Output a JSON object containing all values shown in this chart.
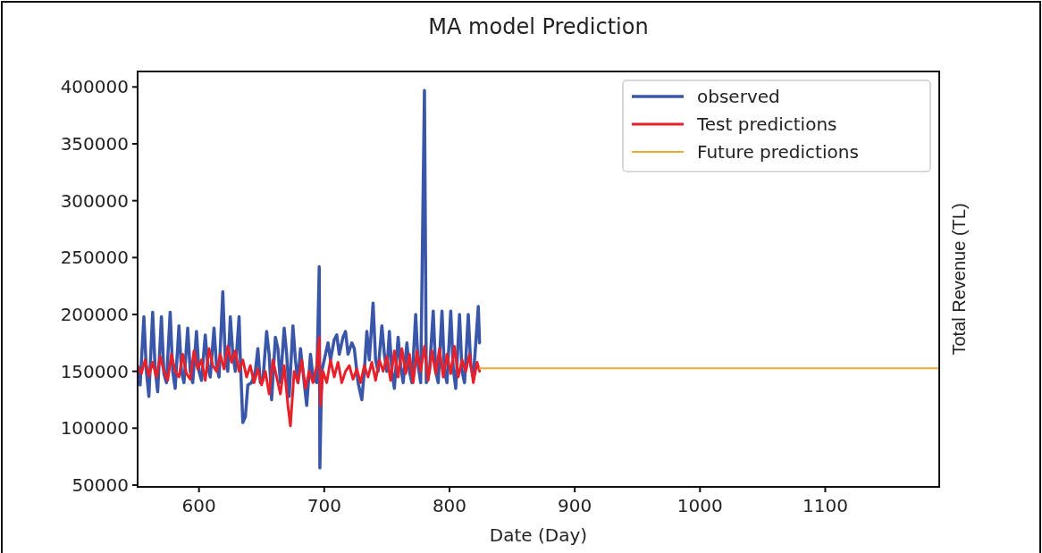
{
  "chart_data": {
    "type": "line",
    "title": "MA model Prediction",
    "xlabel": "Date (Day)",
    "y2label": "Total Revenue (TL)",
    "xlim": [
      551,
      1191
    ],
    "xticks": [
      600,
      700,
      800,
      900,
      1000,
      1100
    ],
    "ylim": [
      48400,
      413600
    ],
    "yticks": [
      50000,
      100000,
      150000,
      200000,
      250000,
      300000,
      350000,
      400000
    ],
    "grid": false,
    "legend": "top right",
    "line_style": "solid",
    "series": [
      {
        "name": "observed",
        "color": "#3a56a8",
        "x": [
          551,
          553,
          556,
          558,
          560,
          563,
          565,
          567,
          570,
          572,
          574,
          577,
          579,
          581,
          584,
          586,
          588,
          591,
          593,
          595,
          598,
          600,
          602,
          605,
          607,
          609,
          612,
          614,
          616,
          619,
          621,
          623,
          625,
          627,
          629,
          632,
          633,
          635,
          637,
          639,
          642,
          645,
          647,
          649,
          651,
          654,
          656,
          658,
          661,
          663,
          665,
          668,
          670,
          672,
          675,
          677,
          679,
          681,
          683,
          686,
          689,
          691,
          694,
          696,
          696.5,
          698,
          700,
          703,
          705,
          708,
          710,
          712,
          715,
          717,
          719,
          722,
          724,
          727,
          730,
          732,
          734,
          736,
          739,
          741,
          743,
          746,
          748,
          750,
          752,
          754,
          756,
          759,
          761,
          763,
          766,
          768,
          770,
          773,
          775,
          777,
          780,
          781.5,
          784,
          787,
          789,
          791,
          794,
          796,
          798,
          801,
          803,
          805,
          808,
          810,
          812,
          815,
          817,
          819,
          821,
          823,
          824
        ],
        "values": [
          150000,
          138000,
          198000,
          150000,
          128000,
          202000,
          152000,
          132000,
          198000,
          148000,
          140000,
          202000,
          150000,
          135000,
          190000,
          150000,
          140000,
          188000,
          150000,
          140000,
          185000,
          150000,
          142000,
          182000,
          155000,
          145000,
          188000,
          155000,
          145000,
          220000,
          160000,
          150000,
          198000,
          165000,
          150000,
          198000,
          160000,
          105000,
          110000,
          138000,
          140000,
          150000,
          170000,
          140000,
          142000,
          185000,
          165000,
          125000,
          180000,
          170000,
          140000,
          188000,
          165000,
          128000,
          190000,
          160000,
          140000,
          170000,
          150000,
          120000,
          165000,
          145000,
          140000,
          242000,
          65000,
          150000,
          160000,
          175000,
          160000,
          178000,
          182000,
          165000,
          180000,
          185000,
          165000,
          175000,
          170000,
          140000,
          125000,
          150000,
          185000,
          160000,
          210000,
          160000,
          150000,
          190000,
          165000,
          150000,
          185000,
          150000,
          135000,
          180000,
          155000,
          140000,
          175000,
          150000,
          140000,
          200000,
          155000,
          140000,
          397000,
          140000,
          150000,
          203000,
          150000,
          140000,
          203000,
          150000,
          140000,
          203000,
          152000,
          135000,
          200000,
          150000,
          140000,
          200000,
          155000,
          145000,
          175000,
          207000,
          175000
        ]
      },
      {
        "name": "Test predictions",
        "color": "#e8202a",
        "x": [
          551,
          554,
          557,
          560,
          563,
          566,
          569,
          572,
          575,
          578,
          581,
          584,
          587,
          590,
          593,
          596,
          599,
          602,
          605,
          608,
          611,
          614,
          617,
          620,
          623,
          626,
          629,
          632,
          635,
          638,
          641,
          644,
          647,
          650,
          653,
          656,
          659,
          662,
          665,
          668,
          671,
          673,
          676,
          679,
          682,
          685,
          688,
          691,
          694,
          696,
          697,
          699,
          702,
          705,
          708,
          711,
          714,
          717,
          720,
          723,
          726,
          729,
          732,
          735,
          738,
          741,
          744,
          747,
          750,
          753,
          756,
          759,
          762,
          765,
          768,
          771,
          774,
          777,
          780,
          783,
          786,
          789,
          792,
          795,
          798,
          801,
          804,
          807,
          810,
          813,
          816,
          819,
          822,
          824
        ],
        "values": [
          155000,
          148000,
          160000,
          146000,
          158000,
          145000,
          163000,
          150000,
          142000,
          165000,
          150000,
          145000,
          165000,
          148000,
          143000,
          168000,
          152000,
          160000,
          142000,
          170000,
          155000,
          150000,
          165000,
          152000,
          172000,
          158000,
          168000,
          150000,
          160000,
          145000,
          155000,
          140000,
          152000,
          138000,
          150000,
          130000,
          160000,
          145000,
          130000,
          155000,
          120000,
          102000,
          150000,
          140000,
          160000,
          135000,
          150000,
          140000,
          155000,
          180000,
          120000,
          150000,
          140000,
          160000,
          145000,
          158000,
          140000,
          150000,
          155000,
          143000,
          152000,
          140000,
          155000,
          145000,
          158000,
          142000,
          160000,
          150000,
          163000,
          142000,
          168000,
          145000,
          170000,
          148000,
          165000,
          140000,
          168000,
          150000,
          172000,
          142000,
          168000,
          148000,
          170000,
          145000,
          165000,
          148000,
          172000,
          145000,
          160000,
          150000,
          165000,
          140000,
          158000,
          150000
        ]
      },
      {
        "name": "Future predictions",
        "color": "#f0a830",
        "x": [
          824,
          1191
        ],
        "values": [
          152700,
          152700
        ]
      }
    ]
  }
}
